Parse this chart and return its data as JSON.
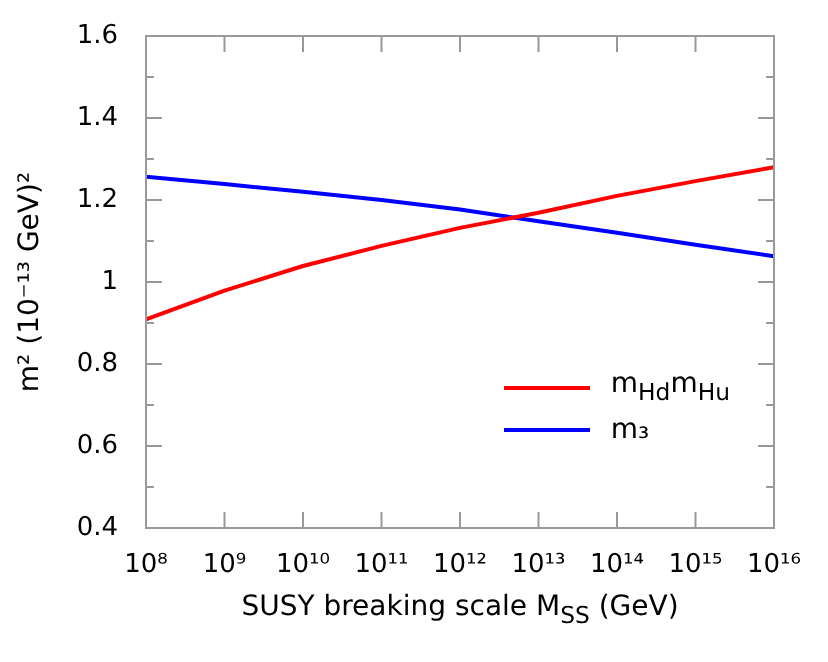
{
  "chart_data": {
    "type": "line",
    "xlabel": "SUSY breaking scale M$_{SS}$ (GeV)",
    "ylabel": "m² (10⁻¹³ GeV)²",
    "x": [
      100000000.0,
      1000000000.0,
      10000000000.0,
      100000000000.0,
      1000000000000.0,
      10000000000000.0,
      100000000000000.0,
      1000000000000000.0,
      1e+16
    ],
    "series": [
      {
        "name": "m$_{Hd}$m$_{Hu}$",
        "color": "#ff0000",
        "values": [
          0.909,
          0.979,
          1.039,
          1.088,
          1.132,
          1.169,
          1.21,
          1.246,
          1.28
        ]
      },
      {
        "name": "m₃",
        "color": "#0000ff",
        "values": [
          1.257,
          1.239,
          1.22,
          1.2,
          1.177,
          1.148,
          1.12,
          1.091,
          1.063
        ]
      }
    ],
    "log": "x",
    "xlim": [
      100000000.0,
      1e+16
    ],
    "xticks": [
      {
        "value": 100000000.0,
        "label": "10⁸"
      },
      {
        "value": 1000000000.0,
        "label": "10⁹"
      },
      {
        "value": 10000000000.0,
        "label": "10¹⁰"
      },
      {
        "value": 100000000000.0,
        "label": "10¹¹"
      },
      {
        "value": 1000000000000.0,
        "label": "10¹²"
      },
      {
        "value": 10000000000000.0,
        "label": "10¹³"
      },
      {
        "value": 100000000000000.0,
        "label": "10¹⁴"
      },
      {
        "value": 1000000000000000.0,
        "label": "10¹⁵"
      },
      {
        "value": 1e+16,
        "label": "10¹⁶"
      }
    ],
    "ylim": [
      0.4,
      1.6
    ],
    "yticks": [
      0.4,
      0.6,
      0.8,
      1,
      1.2,
      1.4,
      1.6
    ],
    "legend": "bottom right",
    "marker": "none",
    "line_style": "solid",
    "grid": false
  }
}
